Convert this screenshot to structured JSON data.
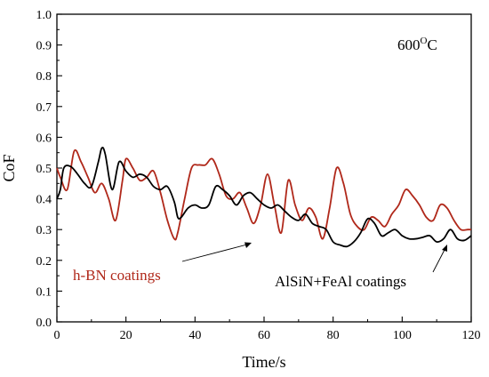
{
  "chart_data": {
    "type": "line",
    "title": "",
    "xlabel": "Time/s",
    "ylabel": "CoF",
    "xlim": [
      0,
      120
    ],
    "ylim": [
      0.0,
      1.0
    ],
    "xticks": [
      "0",
      "20",
      "40",
      "60",
      "80",
      "100",
      "120"
    ],
    "yticks": [
      "0.0",
      "0.1",
      "0.2",
      "0.3",
      "0.4",
      "0.5",
      "0.6",
      "0.7",
      "0.8",
      "0.9",
      "1.0"
    ],
    "grid": false,
    "legend": "none",
    "annotations": {
      "temperature": "600",
      "temperature_unit": "O",
      "temperature_suffix": "C",
      "label_hbn": "h-BN coatings",
      "label_alsin": "AlSiN+FeAl coatings"
    },
    "series": [
      {
        "name": "h-BN coatings",
        "color": "#b0281a",
        "x": [
          0,
          1,
          3,
          5,
          7,
          9,
          11,
          13,
          15,
          17,
          19,
          20,
          22,
          24,
          26,
          28,
          30,
          32,
          34,
          35,
          37,
          39,
          41,
          43,
          45,
          47,
          49,
          51,
          53,
          55,
          57,
          59,
          61,
          63,
          65,
          67,
          69,
          71,
          73,
          75,
          77,
          79,
          81,
          83,
          85,
          87,
          89,
          91,
          93,
          95,
          97,
          99,
          101,
          103,
          105,
          107,
          109,
          111,
          113,
          115,
          117,
          119,
          120
        ],
        "y": [
          0.5,
          0.47,
          0.43,
          0.555,
          0.52,
          0.47,
          0.42,
          0.45,
          0.4,
          0.33,
          0.46,
          0.53,
          0.5,
          0.46,
          0.47,
          0.49,
          0.42,
          0.33,
          0.27,
          0.29,
          0.4,
          0.5,
          0.51,
          0.51,
          0.53,
          0.48,
          0.41,
          0.4,
          0.42,
          0.37,
          0.32,
          0.38,
          0.48,
          0.38,
          0.29,
          0.46,
          0.38,
          0.33,
          0.37,
          0.34,
          0.27,
          0.37,
          0.5,
          0.45,
          0.35,
          0.31,
          0.3,
          0.34,
          0.33,
          0.31,
          0.35,
          0.38,
          0.43,
          0.41,
          0.38,
          0.34,
          0.33,
          0.38,
          0.37,
          0.33,
          0.3,
          0.3,
          0.3
        ]
      },
      {
        "name": "AlSiN+FeAl coatings",
        "color": "#000000",
        "x": [
          0,
          1,
          2,
          4,
          6,
          8,
          10,
          12,
          13,
          14,
          16,
          18,
          20,
          22,
          24,
          26,
          28,
          30,
          32,
          34,
          35,
          36,
          38,
          40,
          42,
          44,
          46,
          48,
          50,
          52,
          54,
          56,
          58,
          60,
          62,
          64,
          66,
          68,
          70,
          72,
          74,
          76,
          78,
          80,
          82,
          84,
          86,
          88,
          90,
          92,
          94,
          96,
          98,
          100,
          102,
          104,
          106,
          108,
          110,
          112,
          114,
          116,
          118,
          120
        ],
        "y": [
          0.4,
          0.43,
          0.5,
          0.505,
          0.48,
          0.45,
          0.44,
          0.52,
          0.565,
          0.545,
          0.43,
          0.52,
          0.49,
          0.47,
          0.48,
          0.47,
          0.44,
          0.43,
          0.44,
          0.39,
          0.34,
          0.34,
          0.37,
          0.38,
          0.37,
          0.38,
          0.44,
          0.43,
          0.41,
          0.38,
          0.41,
          0.42,
          0.4,
          0.38,
          0.37,
          0.38,
          0.36,
          0.34,
          0.33,
          0.35,
          0.32,
          0.31,
          0.3,
          0.26,
          0.25,
          0.245,
          0.26,
          0.29,
          0.335,
          0.32,
          0.28,
          0.29,
          0.3,
          0.28,
          0.27,
          0.27,
          0.275,
          0.28,
          0.26,
          0.27,
          0.3,
          0.27,
          0.265,
          0.28
        ]
      }
    ]
  }
}
